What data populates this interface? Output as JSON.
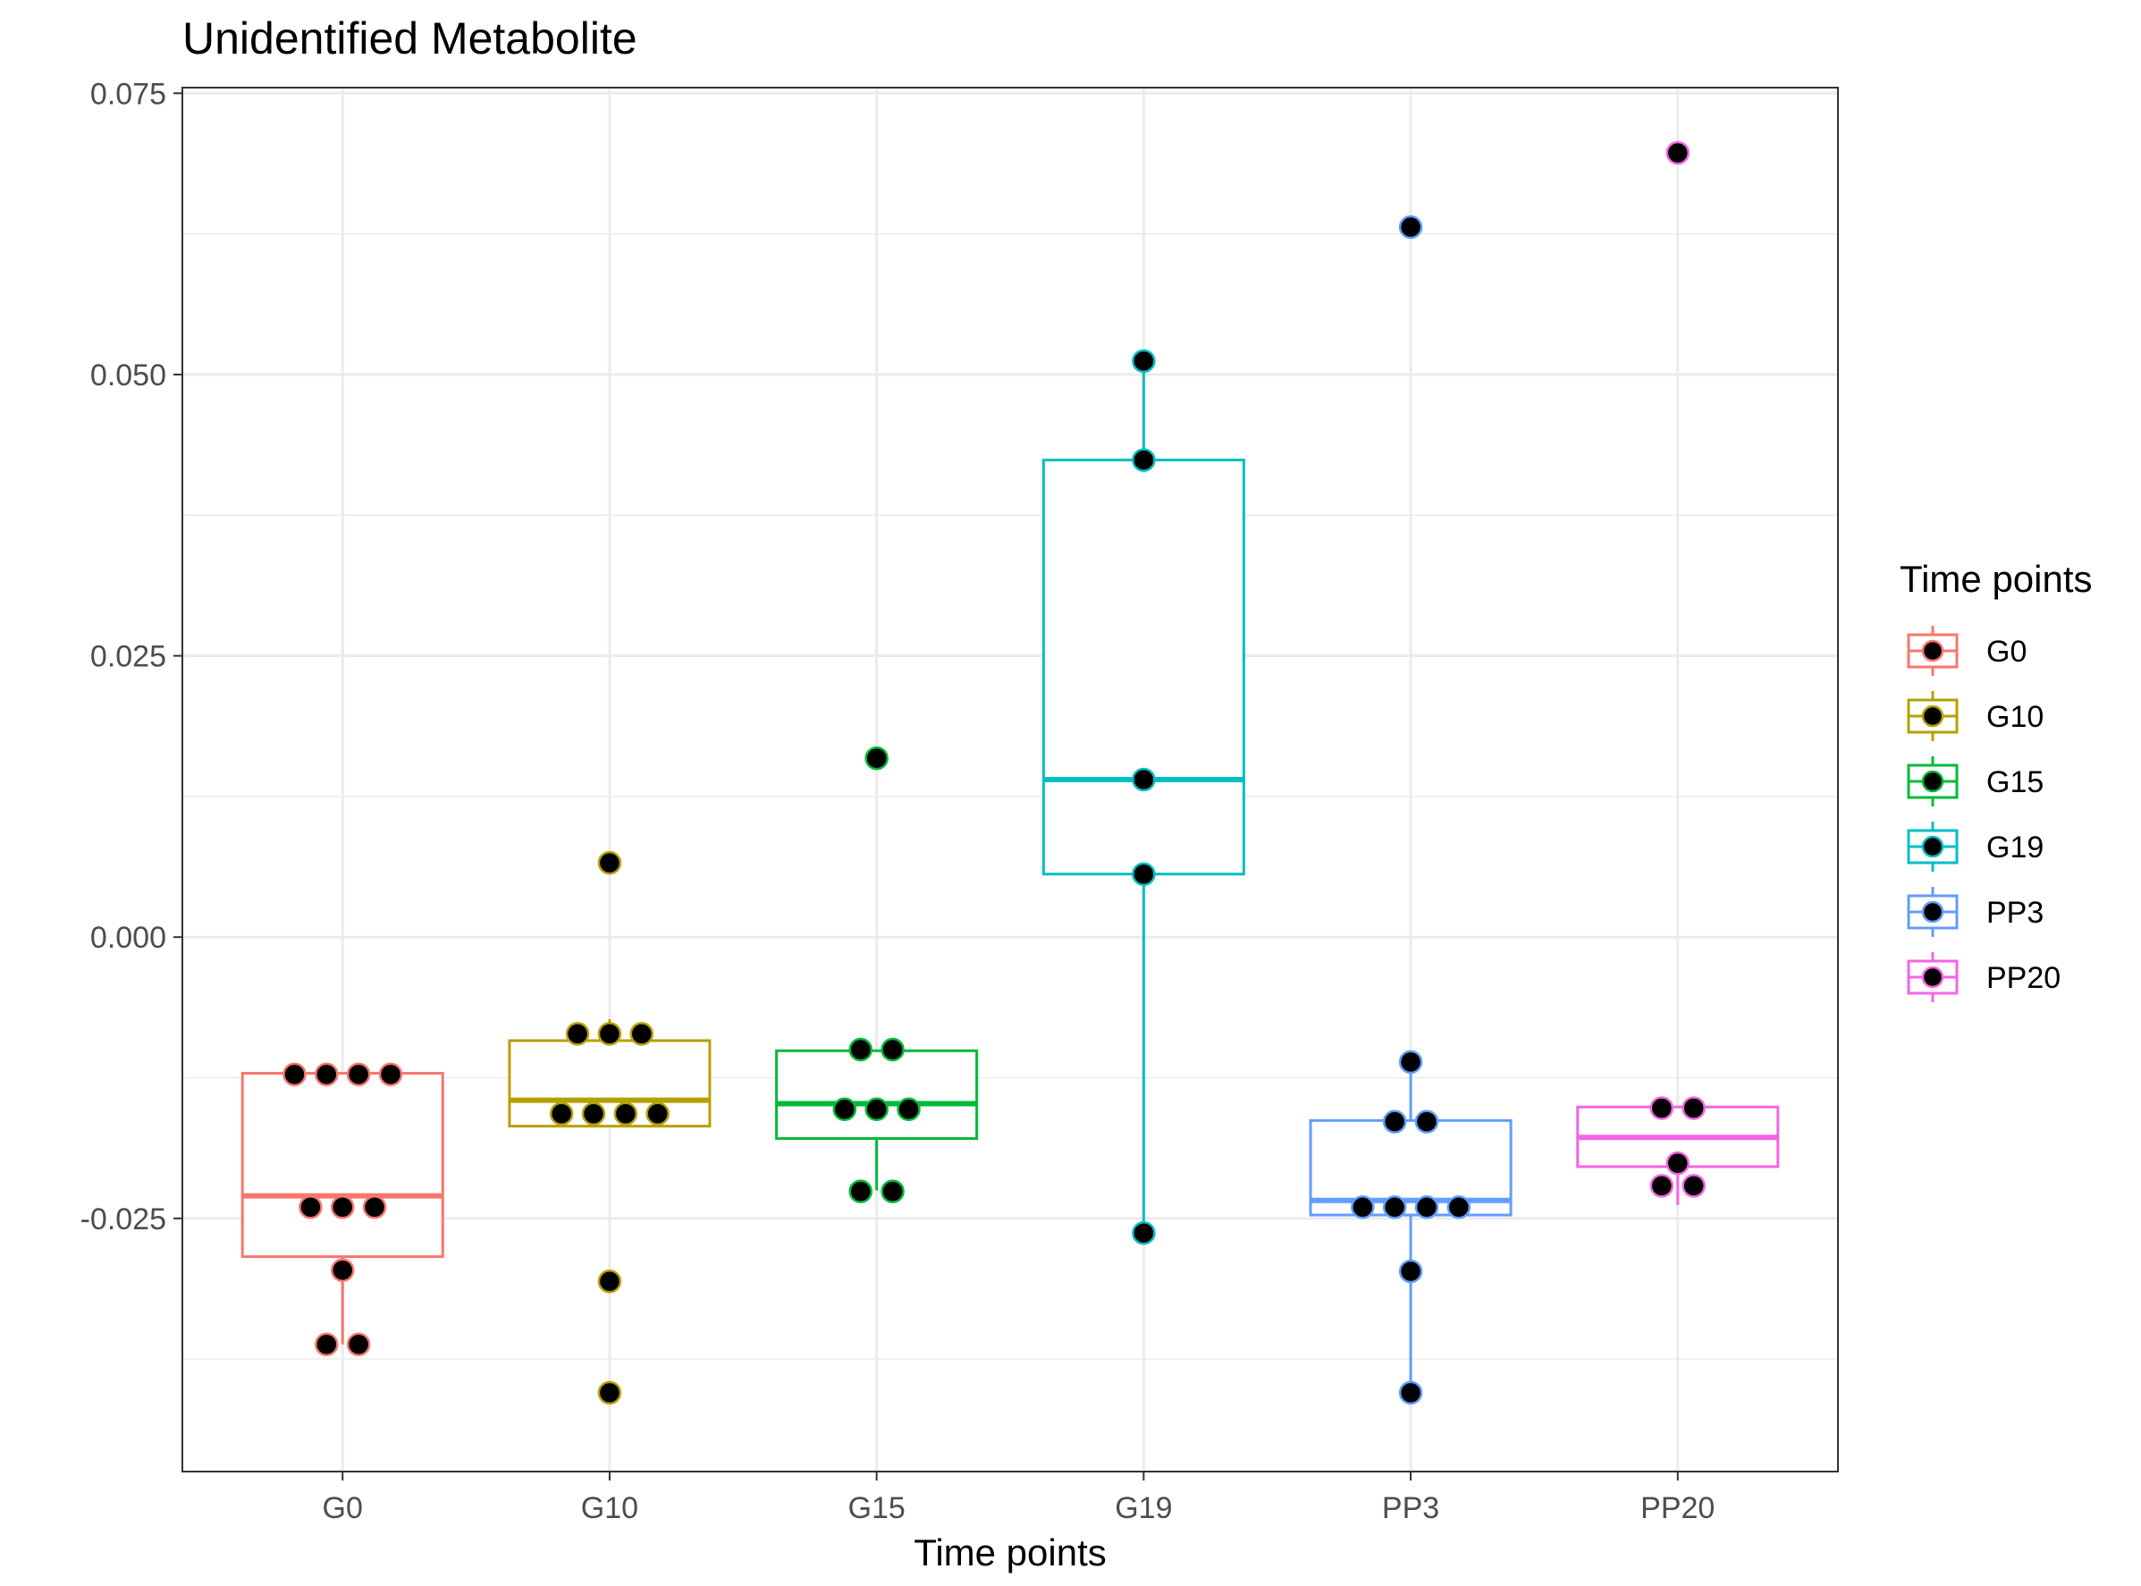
{
  "chart_data": {
    "type": "boxplot",
    "title": "Unidentified Metabolite",
    "xlabel": "Time points",
    "ylabel": "",
    "categories": [
      "G0",
      "G10",
      "G15",
      "G19",
      "PP3",
      "PP20"
    ],
    "ylim": [
      -0.0475,
      0.0755
    ],
    "yticks": [
      -0.025,
      0.0,
      0.025,
      0.05,
      0.075
    ],
    "ytick_labels": [
      "-0.025",
      "0.000",
      "0.025",
      "0.050",
      "0.075"
    ],
    "grid": true,
    "legend": {
      "title": "Time points",
      "position": "right",
      "entries": [
        "G0",
        "G10",
        "G15",
        "G19",
        "PP3",
        "PP20"
      ]
    },
    "colors": {
      "G0": "#F8766D",
      "G10": "#B79F00",
      "G15": "#00BA38",
      "G19": "#00BFC4",
      "PP3": "#619CFF",
      "PP20": "#F564E3",
      "point_fill": "#000000"
    },
    "series": [
      {
        "name": "G0",
        "box": {
          "whisker_low": -0.0362,
          "q1": -0.0284,
          "median": -0.023,
          "q3": -0.0121,
          "whisker_high": -0.0121
        },
        "points": [
          {
            "dx": -0.24,
            "y": -0.0122
          },
          {
            "dx": -0.08,
            "y": -0.0122
          },
          {
            "dx": 0.08,
            "y": -0.0122
          },
          {
            "dx": 0.24,
            "y": -0.0122
          },
          {
            "dx": -0.16,
            "y": -0.024
          },
          {
            "dx": 0.0,
            "y": -0.024
          },
          {
            "dx": 0.16,
            "y": -0.024
          },
          {
            "dx": 0.0,
            "y": -0.0296
          },
          {
            "dx": -0.08,
            "y": -0.0362
          },
          {
            "dx": 0.08,
            "y": -0.0362
          }
        ]
      },
      {
        "name": "G10",
        "box": {
          "whisker_low": -0.0168,
          "q1": -0.0168,
          "median": -0.0145,
          "q3": -0.0092,
          "whisker_high": -0.0073
        },
        "points": [
          {
            "dx": 0.0,
            "y": 0.0066
          },
          {
            "dx": -0.16,
            "y": -0.0086
          },
          {
            "dx": 0.0,
            "y": -0.0086
          },
          {
            "dx": 0.16,
            "y": -0.0086
          },
          {
            "dx": -0.24,
            "y": -0.0157
          },
          {
            "dx": -0.08,
            "y": -0.0157
          },
          {
            "dx": 0.08,
            "y": -0.0157
          },
          {
            "dx": 0.24,
            "y": -0.0157
          },
          {
            "dx": 0.0,
            "y": -0.0306
          },
          {
            "dx": 0.0,
            "y": -0.0405
          }
        ]
      },
      {
        "name": "G15",
        "box": {
          "whisker_low": -0.0225,
          "q1": -0.0179,
          "median": -0.0148,
          "q3": -0.0101,
          "whisker_high": -0.0101
        },
        "points": [
          {
            "dx": 0.0,
            "y": 0.0159
          },
          {
            "dx": -0.08,
            "y": -0.01
          },
          {
            "dx": 0.08,
            "y": -0.01
          },
          {
            "dx": -0.16,
            "y": -0.0153
          },
          {
            "dx": 0.0,
            "y": -0.0153
          },
          {
            "dx": 0.16,
            "y": -0.0153
          },
          {
            "dx": -0.08,
            "y": -0.0226
          },
          {
            "dx": 0.08,
            "y": -0.0226
          }
        ]
      },
      {
        "name": "G19",
        "box": {
          "whisker_low": -0.0263,
          "q1": 0.0056,
          "median": 0.014,
          "q3": 0.0424,
          "whisker_high": 0.0512
        },
        "points": [
          {
            "dx": 0.0,
            "y": 0.0512
          },
          {
            "dx": 0.0,
            "y": 0.0424
          },
          {
            "dx": 0.0,
            "y": 0.014
          },
          {
            "dx": 0.0,
            "y": 0.0056
          },
          {
            "dx": 0.0,
            "y": -0.0263
          }
        ]
      },
      {
        "name": "PP3",
        "box": {
          "whisker_low": -0.0405,
          "q1": -0.0247,
          "median": -0.0234,
          "q3": -0.0163,
          "whisker_high": -0.0111
        },
        "points": [
          {
            "dx": 0.0,
            "y": 0.0631
          },
          {
            "dx": 0.0,
            "y": -0.0111
          },
          {
            "dx": -0.08,
            "y": -0.0164
          },
          {
            "dx": 0.08,
            "y": -0.0164
          },
          {
            "dx": -0.24,
            "y": -0.024
          },
          {
            "dx": -0.08,
            "y": -0.024
          },
          {
            "dx": 0.08,
            "y": -0.024
          },
          {
            "dx": 0.24,
            "y": -0.024
          },
          {
            "dx": 0.0,
            "y": -0.0297
          },
          {
            "dx": 0.0,
            "y": -0.0405
          }
        ]
      },
      {
        "name": "PP20",
        "box": {
          "whisker_low": -0.0238,
          "q1": -0.0204,
          "median": -0.0178,
          "q3": -0.0151,
          "whisker_high": -0.0151
        },
        "points": [
          {
            "dx": 0.0,
            "y": 0.0697
          },
          {
            "dx": -0.08,
            "y": -0.0152
          },
          {
            "dx": 0.08,
            "y": -0.0152
          },
          {
            "dx": 0.0,
            "y": -0.0201
          },
          {
            "dx": -0.08,
            "y": -0.0221
          },
          {
            "dx": 0.08,
            "y": -0.0221
          }
        ]
      }
    ]
  }
}
